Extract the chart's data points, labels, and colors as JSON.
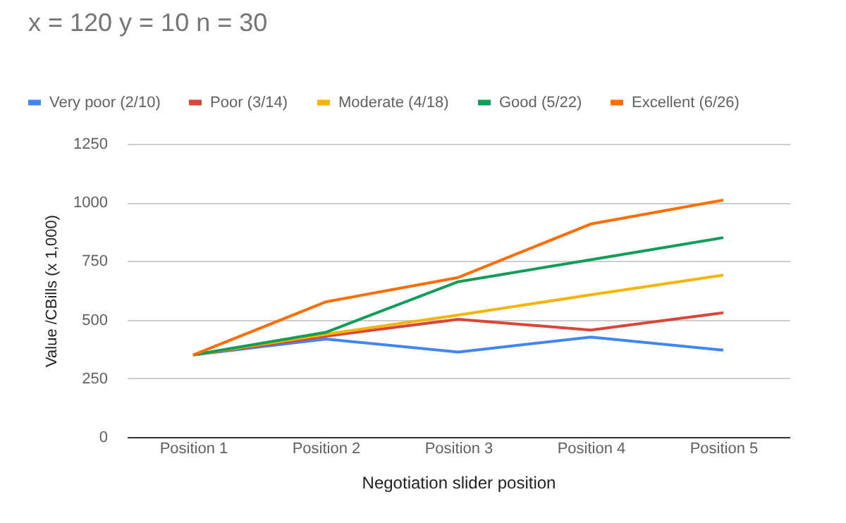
{
  "chart_data": {
    "type": "line",
    "title": "x = 120 y = 10 n = 30",
    "xlabel": "Negotiation slider position",
    "ylabel": "Value /CBills (x 1,000)",
    "categories": [
      "Position 1",
      "Position 2",
      "Position 3",
      "Position 4",
      "Position 5"
    ],
    "series": [
      {
        "name": "Very poor (2/10)",
        "color": "#4285f4",
        "values": [
          350,
          418,
          362,
          426,
          370
        ]
      },
      {
        "name": "Poor (3/14)",
        "color": "#db4437",
        "values": [
          350,
          430,
          502,
          456,
          530
        ]
      },
      {
        "name": "Moderate (4/18)",
        "color": "#f4b400",
        "values": [
          350,
          438,
          520,
          606,
          690
        ]
      },
      {
        "name": "Good (5/22)",
        "color": "#0f9d58",
        "values": [
          350,
          446,
          662,
          756,
          850
        ]
      },
      {
        "name": "Excellent (6/26)",
        "color": "#ff6d01",
        "values": [
          350,
          576,
          680,
          908,
          1010
        ]
      }
    ],
    "ylim": [
      0,
      1250
    ],
    "yticks": [
      0,
      250,
      500,
      750,
      1000,
      1250
    ],
    "grid": "y",
    "legend": "top",
    "marker": "none",
    "line_style": "solid"
  }
}
